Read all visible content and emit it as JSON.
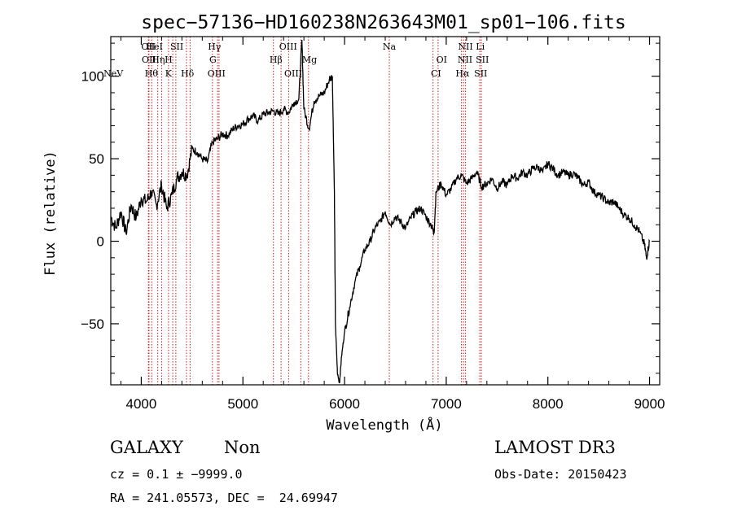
{
  "chart_data": {
    "type": "line",
    "title": "spec−57136−HD160238N263643M01_sp01−106.fits",
    "xlabel": "Wavelength (Å)",
    "ylabel": "Flux (relative)",
    "xlim": [
      3700,
      9100
    ],
    "ylim": [
      -87,
      124
    ],
    "xticks": [
      4000,
      5000,
      6000,
      7000,
      8000,
      9000
    ],
    "yticks": [
      -50,
      0,
      50,
      100
    ],
    "ytick_labels": [
      "−50",
      "0",
      "50",
      "100"
    ],
    "series": [
      {
        "name": "spectrum",
        "x": [
          3700,
          3750,
          3800,
          3850,
          3900,
          3950,
          4000,
          4050,
          4100,
          4150,
          4200,
          4250,
          4300,
          4350,
          4400,
          4450,
          4500,
          4550,
          4600,
          4650,
          4700,
          4750,
          4800,
          4850,
          4900,
          4950,
          5000,
          5050,
          5100,
          5150,
          5200,
          5250,
          5300,
          5350,
          5400,
          5450,
          5500,
          5550,
          5580,
          5600,
          5650,
          5700,
          5750,
          5800,
          5850,
          5880,
          5900,
          5910,
          5930,
          5950,
          5970,
          6000,
          6050,
          6100,
          6150,
          6200,
          6250,
          6300,
          6350,
          6400,
          6450,
          6500,
          6550,
          6600,
          6650,
          6700,
          6750,
          6800,
          6850,
          6880,
          6900,
          6950,
          7000,
          7050,
          7100,
          7150,
          7200,
          7250,
          7300,
          7350,
          7400,
          7450,
          7500,
          7550,
          7600,
          7650,
          7700,
          7750,
          7800,
          7850,
          7900,
          7950,
          8000,
          8050,
          8100,
          8150,
          8200,
          8250,
          8300,
          8350,
          8400,
          8450,
          8500,
          8550,
          8600,
          8650,
          8700,
          8750,
          8800,
          8850,
          8900,
          8950,
          8970,
          9000
        ],
        "y": [
          15,
          8,
          18,
          5,
          22,
          14,
          26,
          24,
          30,
          22,
          34,
          20,
          28,
          38,
          42,
          40,
          56,
          54,
          50,
          48,
          60,
          62,
          65,
          64,
          68,
          70,
          71,
          74,
          76,
          73,
          77,
          78,
          79,
          77,
          80,
          78,
          84,
          86,
          122,
          80,
          68,
          85,
          88,
          90,
          98,
          100,
          30,
          -50,
          -80,
          -86,
          -70,
          -55,
          -40,
          -25,
          -15,
          -5,
          0,
          8,
          12,
          18,
          10,
          15,
          12,
          8,
          14,
          18,
          20,
          15,
          10,
          5,
          30,
          35,
          28,
          32,
          38,
          40,
          35,
          38,
          42,
          33,
          35,
          38,
          32,
          36,
          34,
          40,
          38,
          42,
          40,
          44,
          45,
          42,
          47,
          44,
          40,
          42,
          40,
          41,
          38,
          34,
          36,
          30,
          28,
          26,
          23,
          24,
          20,
          16,
          14,
          10,
          6,
          -2,
          -10,
          0
        ]
      }
    ],
    "spectral_lines": [
      {
        "label": "NeV",
        "wl": 3726,
        "row": 3
      },
      {
        "label": "OII",
        "wl": 4070,
        "row": 0
      },
      {
        "label": "OII",
        "wl": 4076,
        "row": 1
      },
      {
        "label": "HeI",
        "wl": 4130,
        "row": 0
      },
      {
        "label": "Hη",
        "wl": 4168,
        "row": 1
      },
      {
        "label": "Hθ",
        "wl": 4100,
        "row": 2
      },
      {
        "label": "H",
        "wl": 4268,
        "row": 1
      },
      {
        "label": "K",
        "wl": 4268,
        "row": 2
      },
      {
        "label": "SII",
        "wl": 4350,
        "row": 0
      },
      {
        "label": "Hδ",
        "wl": 4455,
        "row": 2
      },
      {
        "label": "Hγ",
        "wl": 4720,
        "row": 0
      },
      {
        "label": "G",
        "wl": 4705,
        "row": 1
      },
      {
        "label": "OIII",
        "wl": 4740,
        "row": 2
      },
      {
        "label": "OIII",
        "wl": 5445,
        "row": 0
      },
      {
        "label": "Hβ",
        "wl": 5325,
        "row": 1
      },
      {
        "label": "Mg",
        "wl": 5655,
        "row": 1
      },
      {
        "label": "OIII",
        "wl": 5495,
        "row": 2
      },
      {
        "label": "Na",
        "wl": 6440,
        "row": 0
      },
      {
        "label": "OI",
        "wl": 6955,
        "row": 1
      },
      {
        "label": "CI",
        "wl": 6900,
        "row": 2
      },
      {
        "label": "NII",
        "wl": 7190,
        "row": 0
      },
      {
        "label": "NII",
        "wl": 7185,
        "row": 1
      },
      {
        "label": "Hα",
        "wl": 7160,
        "row": 2
      },
      {
        "label": "Li",
        "wl": 7335,
        "row": 0
      },
      {
        "label": "SII",
        "wl": 7355,
        "row": 1
      },
      {
        "label": "SII",
        "wl": 7340,
        "row": 2
      }
    ],
    "line_marker_wavelengths": [
      4070,
      4076,
      4102,
      4162,
      4200,
      4268,
      4310,
      4340,
      4444,
      4480,
      4700,
      4750,
      4765,
      5300,
      5375,
      5450,
      5570,
      5645,
      6440,
      6870,
      6920,
      7150,
      7170,
      7190,
      7330,
      7345
    ],
    "line_color": "#c81e1e"
  },
  "info": {
    "class": "GALAXY",
    "subclass": "Non",
    "survey": "LAMOST DR3",
    "cz": "cz = 0.1 ± −9999.0",
    "obs_date": "Obs-Date: 20150423",
    "coords": "RA = 241.05573, DEC =  24.69947"
  }
}
